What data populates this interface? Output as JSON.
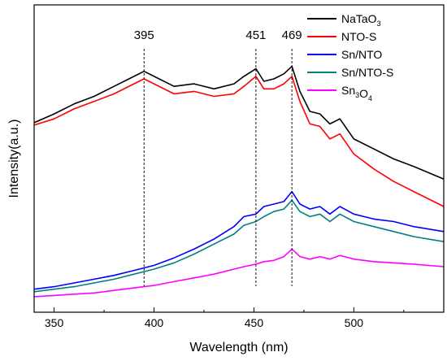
{
  "chart_data": {
    "type": "line",
    "title": "",
    "xlabel": "Wavelength (nm)",
    "ylabel": "Intensity(a.u.)",
    "xlim": [
      340,
      545
    ],
    "ylim": [
      0,
      100
    ],
    "x_ticks": [
      350,
      400,
      450,
      500
    ],
    "x_tick_labels": [
      "350",
      "400",
      "450",
      "500"
    ],
    "y_ticks_visible": false,
    "grid": false,
    "legend_position": "top-right",
    "peak_markers": [
      {
        "x": 395,
        "label": "395"
      },
      {
        "x": 451,
        "label": "451"
      },
      {
        "x": 469,
        "label": "469"
      }
    ],
    "series": [
      {
        "name": "NaTaO3",
        "legend_main": "NaTaO",
        "legend_sub": "3",
        "color": "#000000",
        "x": [
          340,
          350,
          360,
          370,
          380,
          390,
          395,
          400,
          410,
          420,
          430,
          440,
          445,
          451,
          455,
          460,
          465,
          469,
          473,
          478,
          483,
          488,
          493,
          500,
          510,
          520,
          530,
          545
        ],
        "y": [
          70.5,
          74,
          78,
          81,
          85,
          89,
          91,
          89,
          85,
          86,
          84,
          86,
          89,
          92,
          87,
          88,
          90,
          93,
          83,
          75,
          74,
          70,
          72,
          64,
          60,
          56,
          53,
          48
        ]
      },
      {
        "name": "NTO-S",
        "legend_main": "NTO-S",
        "legend_sub": "",
        "color": "#ff0000",
        "x": [
          340,
          350,
          360,
          370,
          380,
          390,
          395,
          400,
          410,
          420,
          430,
          440,
          445,
          451,
          455,
          460,
          465,
          469,
          473,
          478,
          483,
          488,
          493,
          500,
          510,
          520,
          530,
          545
        ],
        "y": [
          69.5,
          72,
          76,
          79,
          82,
          86,
          88,
          86,
          82,
          83,
          81,
          82,
          85,
          89,
          84,
          84,
          86,
          89,
          79,
          70,
          69,
          64,
          66,
          58,
          52,
          47,
          43,
          37
        ]
      },
      {
        "name": "Sn/NTO",
        "legend_main": "Sn/NTO",
        "legend_sub": "",
        "color": "#0000ff",
        "x": [
          340,
          350,
          360,
          370,
          380,
          390,
          395,
          400,
          410,
          420,
          430,
          440,
          445,
          451,
          455,
          460,
          465,
          469,
          473,
          478,
          483,
          488,
          493,
          500,
          510,
          520,
          530,
          545
        ],
        "y": [
          4,
          5,
          6.5,
          8,
          9.5,
          11.5,
          12.5,
          13.5,
          16.5,
          20,
          24,
          29,
          33,
          34,
          37,
          38,
          39,
          43,
          38,
          36,
          37,
          34,
          37,
          34,
          32,
          31,
          29,
          27
        ]
      },
      {
        "name": "Sn/NTO-S",
        "legend_main": "Sn/NTO-S",
        "legend_sub": "",
        "color": "#008080",
        "x": [
          340,
          350,
          360,
          370,
          380,
          390,
          395,
          400,
          410,
          420,
          430,
          440,
          445,
          451,
          455,
          460,
          465,
          469,
          473,
          478,
          483,
          488,
          493,
          500,
          510,
          520,
          530,
          545
        ],
        "y": [
          3,
          4,
          5,
          6.5,
          8,
          10,
          11,
          12,
          14.5,
          18,
          22,
          26,
          29.5,
          31,
          33,
          35,
          36,
          39.5,
          35,
          33,
          34,
          31,
          34,
          31,
          29,
          27,
          25,
          23
        ]
      },
      {
        "name": "Sn3O4",
        "legend_main": "Sn",
        "legend_sub": "3",
        "legend_main2": "O",
        "legend_sub2": "4",
        "color": "#ff00ff",
        "x": [
          340,
          350,
          360,
          370,
          380,
          390,
          395,
          400,
          410,
          420,
          430,
          440,
          445,
          451,
          455,
          460,
          465,
          469,
          473,
          478,
          483,
          488,
          493,
          500,
          510,
          520,
          530,
          545
        ],
        "y": [
          1,
          1.5,
          2,
          2.5,
          3.5,
          4.5,
          5,
          5.5,
          7,
          8.5,
          10,
          12,
          13,
          14,
          15,
          15.5,
          17,
          20,
          17,
          16,
          17,
          16,
          17.5,
          16,
          15,
          14.5,
          14,
          13
        ]
      }
    ]
  }
}
